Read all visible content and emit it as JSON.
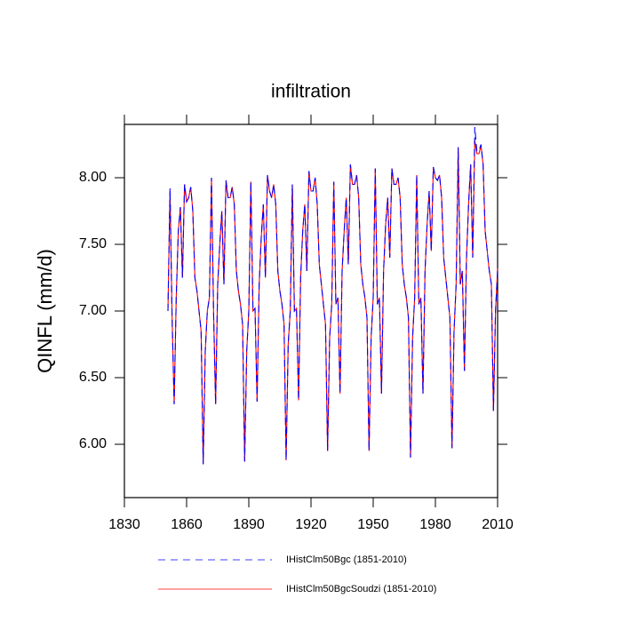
{
  "chart_data": {
    "type": "line",
    "title": "infiltration",
    "y_label": "QINFL  (mm/d)",
    "x": [
      1851,
      1852,
      1853,
      1854,
      1855,
      1856,
      1857,
      1858,
      1859,
      1860,
      1861,
      1862,
      1863,
      1864,
      1865,
      1866,
      1867,
      1868,
      1869,
      1870,
      1871,
      1872,
      1873,
      1874,
      1875,
      1876,
      1877,
      1878,
      1879,
      1880,
      1881,
      1882,
      1883,
      1884,
      1885,
      1886,
      1887,
      1888,
      1889,
      1890,
      1891,
      1892,
      1893,
      1894,
      1895,
      1896,
      1897,
      1898,
      1899,
      1900,
      1901,
      1902,
      1903,
      1904,
      1905,
      1906,
      1907,
      1908,
      1909,
      1910,
      1911,
      1912,
      1913,
      1914,
      1915,
      1916,
      1917,
      1918,
      1919,
      1920,
      1921,
      1922,
      1923,
      1924,
      1925,
      1926,
      1927,
      1928,
      1929,
      1930,
      1931,
      1932,
      1933,
      1934,
      1935,
      1936,
      1937,
      1938,
      1939,
      1940,
      1941,
      1942,
      1943,
      1944,
      1945,
      1946,
      1947,
      1948,
      1949,
      1950,
      1951,
      1952,
      1953,
      1954,
      1955,
      1956,
      1957,
      1958,
      1959,
      1960,
      1961,
      1962,
      1963,
      1964,
      1965,
      1966,
      1967,
      1968,
      1969,
      1970,
      1971,
      1972,
      1973,
      1974,
      1975,
      1976,
      1977,
      1978,
      1979,
      1980,
      1981,
      1982,
      1983,
      1984,
      1985,
      1986,
      1987,
      1988,
      1989,
      1990,
      1991,
      1992,
      1993,
      1994,
      1995,
      1996,
      1997,
      1998,
      1999,
      2000,
      2001,
      2002,
      2003,
      2004,
      2005,
      2006,
      2007,
      2008,
      2009,
      2010
    ],
    "series": [
      {
        "name": "IHistClm50Bgc (1851-2010)",
        "color": "#0000ff",
        "dashed": true,
        "values": [
          7.0,
          7.92,
          6.95,
          6.3,
          7.1,
          7.6,
          7.78,
          7.25,
          7.95,
          7.82,
          7.85,
          7.93,
          7.75,
          7.25,
          7.15,
          7.0,
          6.85,
          5.85,
          6.7,
          7.0,
          7.1,
          8.0,
          7.0,
          6.3,
          7.2,
          7.5,
          7.75,
          7.2,
          7.98,
          7.85,
          7.85,
          7.93,
          7.8,
          7.3,
          7.15,
          7.05,
          6.9,
          5.87,
          6.7,
          7.0,
          7.97,
          7.0,
          7.02,
          6.32,
          7.2,
          7.55,
          7.8,
          7.25,
          8.02,
          7.9,
          7.85,
          7.95,
          7.8,
          7.3,
          7.15,
          7.05,
          6.9,
          5.88,
          6.75,
          7.0,
          7.95,
          7.0,
          7.02,
          6.33,
          7.25,
          7.6,
          7.8,
          7.3,
          8.05,
          7.9,
          7.9,
          8.0,
          7.8,
          7.35,
          7.2,
          7.05,
          6.9,
          5.95,
          6.8,
          7.05,
          7.97,
          7.05,
          7.1,
          6.38,
          7.3,
          7.6,
          7.85,
          7.35,
          8.1,
          7.95,
          7.95,
          8.02,
          7.85,
          7.35,
          7.2,
          7.1,
          6.95,
          5.95,
          6.8,
          7.1,
          8.07,
          7.05,
          7.1,
          6.38,
          7.3,
          7.65,
          7.85,
          7.4,
          8.07,
          7.95,
          7.95,
          8.0,
          7.85,
          7.35,
          7.2,
          7.1,
          6.95,
          5.9,
          6.8,
          7.1,
          8.02,
          7.05,
          7.1,
          6.38,
          7.3,
          7.65,
          7.9,
          7.45,
          8.08,
          8.0,
          7.98,
          8.02,
          7.85,
          7.4,
          7.25,
          7.1,
          6.95,
          5.97,
          6.85,
          7.2,
          8.23,
          7.2,
          7.3,
          6.55,
          7.4,
          7.8,
          8.1,
          7.4,
          8.38,
          8.2,
          8.2,
          8.25,
          8.1,
          7.6,
          7.45,
          7.3,
          7.2,
          6.25,
          7.0,
          7.3
        ]
      },
      {
        "name": "IHistClm50BgcSoudzi (1851-2010)",
        "color": "#ff0000",
        "dashed": false,
        "values": [
          7.0,
          7.9,
          6.95,
          6.3,
          7.1,
          7.6,
          7.78,
          7.25,
          7.95,
          7.82,
          7.85,
          7.93,
          7.75,
          7.25,
          7.15,
          7.0,
          6.85,
          5.85,
          6.7,
          7.0,
          7.1,
          8.0,
          7.0,
          6.3,
          7.2,
          7.5,
          7.75,
          7.2,
          7.98,
          7.85,
          7.85,
          7.93,
          7.8,
          7.3,
          7.15,
          7.05,
          6.9,
          5.87,
          6.7,
          7.0,
          7.97,
          7.0,
          7.02,
          6.32,
          7.2,
          7.55,
          7.8,
          7.25,
          8.02,
          7.9,
          7.85,
          7.95,
          7.8,
          7.3,
          7.15,
          7.05,
          6.9,
          5.88,
          6.75,
          7.0,
          7.95,
          7.0,
          7.02,
          6.33,
          7.25,
          7.6,
          7.8,
          7.3,
          8.05,
          7.9,
          7.9,
          8.0,
          7.8,
          7.35,
          7.2,
          7.05,
          6.9,
          5.95,
          6.8,
          7.05,
          7.97,
          7.05,
          7.1,
          6.38,
          7.3,
          7.6,
          7.85,
          7.35,
          8.1,
          7.95,
          7.95,
          8.02,
          7.85,
          7.35,
          7.2,
          7.1,
          6.95,
          5.95,
          6.8,
          7.1,
          8.07,
          7.05,
          7.1,
          6.38,
          7.3,
          7.65,
          7.85,
          7.4,
          8.07,
          7.95,
          7.95,
          8.0,
          7.85,
          7.35,
          7.2,
          7.1,
          6.95,
          5.9,
          6.8,
          7.1,
          8.02,
          7.05,
          7.1,
          6.38,
          7.3,
          7.65,
          7.9,
          7.45,
          8.08,
          8.0,
          7.98,
          8.02,
          7.85,
          7.4,
          7.25,
          7.1,
          6.95,
          5.97,
          6.85,
          7.2,
          8.22,
          7.2,
          7.3,
          6.55,
          7.4,
          7.8,
          8.1,
          7.4,
          8.28,
          8.18,
          8.18,
          8.24,
          8.1,
          7.6,
          7.45,
          7.3,
          7.2,
          6.25,
          7.0,
          7.32
        ]
      }
    ],
    "xlim": [
      1830,
      2010
    ],
    "xticks": [
      1830,
      1860,
      1890,
      1920,
      1950,
      1980,
      2010
    ],
    "ylim": [
      5.6,
      8.4
    ],
    "yticks": [
      {
        "value": 6,
        "label": "6.00"
      },
      {
        "value": 6.5,
        "label": "6.50"
      },
      {
        "value": 7,
        "label": "7.00"
      },
      {
        "value": 7.5,
        "label": "7.50"
      },
      {
        "value": 8,
        "label": "8.00"
      }
    ],
    "grid": false,
    "legend": "bottom"
  }
}
